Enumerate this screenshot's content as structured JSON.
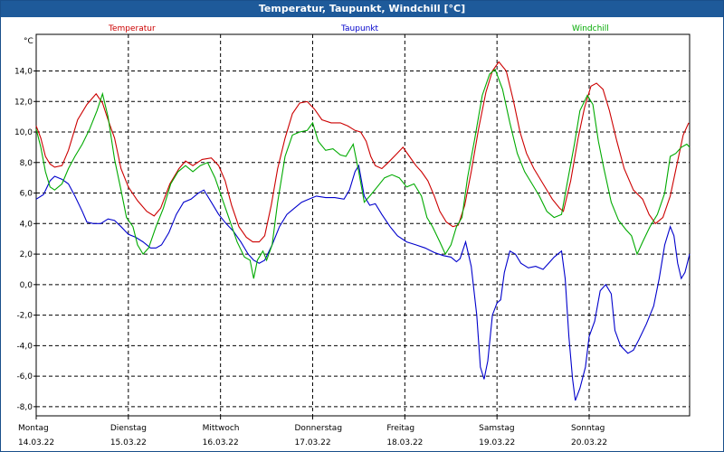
{
  "chart_data": {
    "type": "line",
    "title": "Temperatur, Taupunkt, Windchill [°C]",
    "ylabel": "°C",
    "ylim": [
      -8.6,
      16.4
    ],
    "xlim": [
      0,
      7.09
    ],
    "grid": true,
    "y_ticks": [
      "14,0",
      "12,0",
      "10,0",
      "8,0",
      "6,0",
      "4,0",
      "2,0",
      "0,0",
      "-2,0",
      "-4,0",
      "-6,0",
      "-8,0"
    ],
    "y_tick_values": [
      14,
      12,
      10,
      8,
      6,
      4,
      2,
      0,
      -2,
      -4,
      -6,
      -8
    ],
    "days": [
      {
        "day": "Montag",
        "date": "14.03.22"
      },
      {
        "day": "Dienstag",
        "date": "15.03.22"
      },
      {
        "day": "Mittwoch",
        "date": "16.03.22"
      },
      {
        "day": "Donnerstag",
        "date": "17.03.22"
      },
      {
        "day": "Freitag",
        "date": "18.03.22"
      },
      {
        "day": "Samstag",
        "date": "19.03.22"
      },
      {
        "day": "Sonntag",
        "date": "20.03.22"
      }
    ],
    "series": [
      {
        "name": "Temperatur",
        "color": "#cc0000",
        "points": [
          [
            0,
            10.4
          ],
          [
            0.05,
            9.6
          ],
          [
            0.1,
            8.4
          ],
          [
            0.15,
            7.9
          ],
          [
            0.2,
            7.7
          ],
          [
            0.28,
            7.8
          ],
          [
            0.35,
            8.8
          ],
          [
            0.45,
            10.8
          ],
          [
            0.55,
            11.8
          ],
          [
            0.65,
            12.5
          ],
          [
            0.72,
            11.9
          ],
          [
            0.78,
            10.8
          ],
          [
            0.85,
            9.6
          ],
          [
            0.92,
            7.6
          ],
          [
            1.0,
            6.4
          ],
          [
            1.1,
            5.5
          ],
          [
            1.2,
            4.8
          ],
          [
            1.28,
            4.5
          ],
          [
            1.35,
            5.0
          ],
          [
            1.45,
            6.6
          ],
          [
            1.55,
            7.6
          ],
          [
            1.62,
            8.1
          ],
          [
            1.7,
            7.8
          ],
          [
            1.8,
            8.2
          ],
          [
            1.9,
            8.3
          ],
          [
            1.98,
            7.8
          ],
          [
            2.05,
            6.8
          ],
          [
            2.12,
            5.2
          ],
          [
            2.2,
            3.8
          ],
          [
            2.28,
            3.1
          ],
          [
            2.35,
            2.8
          ],
          [
            2.42,
            2.8
          ],
          [
            2.48,
            3.2
          ],
          [
            2.55,
            5.2
          ],
          [
            2.62,
            7.6
          ],
          [
            2.7,
            9.6
          ],
          [
            2.78,
            11.2
          ],
          [
            2.86,
            11.9
          ],
          [
            2.94,
            12.0
          ],
          [
            3.02,
            11.5
          ],
          [
            3.1,
            10.8
          ],
          [
            3.2,
            10.6
          ],
          [
            3.3,
            10.6
          ],
          [
            3.38,
            10.4
          ],
          [
            3.46,
            10.1
          ],
          [
            3.52,
            10.0
          ],
          [
            3.58,
            9.4
          ],
          [
            3.63,
            8.4
          ],
          [
            3.68,
            7.8
          ],
          [
            3.75,
            7.6
          ],
          [
            3.82,
            8.0
          ],
          [
            3.9,
            8.5
          ],
          [
            3.98,
            9.0
          ],
          [
            4.05,
            8.4
          ],
          [
            4.12,
            7.8
          ],
          [
            4.18,
            7.4
          ],
          [
            4.25,
            6.8
          ],
          [
            4.32,
            5.8
          ],
          [
            4.38,
            4.8
          ],
          [
            4.45,
            4.1
          ],
          [
            4.52,
            3.8
          ],
          [
            4.58,
            3.9
          ],
          [
            4.65,
            5.2
          ],
          [
            4.72,
            7.4
          ],
          [
            4.8,
            10.2
          ],
          [
            4.88,
            12.6
          ],
          [
            4.95,
            14.0
          ],
          [
            5.02,
            14.6
          ],
          [
            5.1,
            14.0
          ],
          [
            5.18,
            12.0
          ],
          [
            5.25,
            10.0
          ],
          [
            5.32,
            8.6
          ],
          [
            5.4,
            7.6
          ],
          [
            5.5,
            6.6
          ],
          [
            5.6,
            5.6
          ],
          [
            5.68,
            5.0
          ],
          [
            5.72,
            4.8
          ],
          [
            5.8,
            6.8
          ],
          [
            5.88,
            9.6
          ],
          [
            5.95,
            11.6
          ],
          [
            6.02,
            13.0
          ],
          [
            6.08,
            13.2
          ],
          [
            6.15,
            12.8
          ],
          [
            6.22,
            11.4
          ],
          [
            6.3,
            9.4
          ],
          [
            6.38,
            7.6
          ],
          [
            6.48,
            6.2
          ],
          [
            6.58,
            5.6
          ],
          [
            6.65,
            4.6
          ],
          [
            6.72,
            4.0
          ],
          [
            6.8,
            4.4
          ],
          [
            6.88,
            5.8
          ],
          [
            6.95,
            7.8
          ],
          [
            7.02,
            9.8
          ],
          [
            7.08,
            10.6
          ]
        ]
      },
      {
        "name": "Taupunkt",
        "color": "#0000cc",
        "points": [
          [
            0,
            5.6
          ],
          [
            0.08,
            5.9
          ],
          [
            0.15,
            6.8
          ],
          [
            0.2,
            7.1
          ],
          [
            0.28,
            6.9
          ],
          [
            0.35,
            6.6
          ],
          [
            0.42,
            5.8
          ],
          [
            0.5,
            4.8
          ],
          [
            0.55,
            4.1
          ],
          [
            0.62,
            4.0
          ],
          [
            0.7,
            4.0
          ],
          [
            0.78,
            4.3
          ],
          [
            0.85,
            4.2
          ],
          [
            0.92,
            3.8
          ],
          [
            1.0,
            3.3
          ],
          [
            1.08,
            3.1
          ],
          [
            1.16,
            2.8
          ],
          [
            1.24,
            2.4
          ],
          [
            1.3,
            2.4
          ],
          [
            1.36,
            2.6
          ],
          [
            1.44,
            3.4
          ],
          [
            1.52,
            4.6
          ],
          [
            1.6,
            5.4
          ],
          [
            1.68,
            5.6
          ],
          [
            1.76,
            6.0
          ],
          [
            1.82,
            6.2
          ],
          [
            1.9,
            5.4
          ],
          [
            1.98,
            4.6
          ],
          [
            2.06,
            4.0
          ],
          [
            2.14,
            3.5
          ],
          [
            2.22,
            2.8
          ],
          [
            2.3,
            2.0
          ],
          [
            2.36,
            1.6
          ],
          [
            2.42,
            1.4
          ],
          [
            2.48,
            1.6
          ],
          [
            2.56,
            2.6
          ],
          [
            2.64,
            3.8
          ],
          [
            2.72,
            4.6
          ],
          [
            2.8,
            5.0
          ],
          [
            2.88,
            5.4
          ],
          [
            2.96,
            5.6
          ],
          [
            3.04,
            5.8
          ],
          [
            3.14,
            5.7
          ],
          [
            3.24,
            5.7
          ],
          [
            3.34,
            5.6
          ],
          [
            3.4,
            6.2
          ],
          [
            3.46,
            7.4
          ],
          [
            3.5,
            7.8
          ],
          [
            3.56,
            5.8
          ],
          [
            3.62,
            5.2
          ],
          [
            3.68,
            5.3
          ],
          [
            3.75,
            4.6
          ],
          [
            3.84,
            3.8
          ],
          [
            3.92,
            3.2
          ],
          [
            4.02,
            2.8
          ],
          [
            4.12,
            2.6
          ],
          [
            4.22,
            2.4
          ],
          [
            4.32,
            2.1
          ],
          [
            4.42,
            1.9
          ],
          [
            4.5,
            1.8
          ],
          [
            4.56,
            1.5
          ],
          [
            4.6,
            1.7
          ],
          [
            4.66,
            2.8
          ],
          [
            4.72,
            1.2
          ],
          [
            4.78,
            -2.0
          ],
          [
            4.82,
            -5.4
          ],
          [
            4.86,
            -6.2
          ],
          [
            4.9,
            -5.0
          ],
          [
            4.95,
            -2.0
          ],
          [
            5.0,
            -1.2
          ],
          [
            5.04,
            -1.0
          ],
          [
            5.08,
            0.8
          ],
          [
            5.14,
            2.2
          ],
          [
            5.2,
            2.0
          ],
          [
            5.26,
            1.4
          ],
          [
            5.34,
            1.1
          ],
          [
            5.42,
            1.2
          ],
          [
            5.5,
            1.0
          ],
          [
            5.56,
            1.4
          ],
          [
            5.62,
            1.8
          ],
          [
            5.7,
            2.2
          ],
          [
            5.74,
            0.4
          ],
          [
            5.78,
            -3.4
          ],
          [
            5.82,
            -6.2
          ],
          [
            5.85,
            -7.6
          ],
          [
            5.9,
            -6.8
          ],
          [
            5.96,
            -5.4
          ],
          [
            6.0,
            -3.4
          ],
          [
            6.06,
            -2.4
          ],
          [
            6.12,
            -0.4
          ],
          [
            6.18,
            0.0
          ],
          [
            6.24,
            -0.6
          ],
          [
            6.28,
            -3.0
          ],
          [
            6.34,
            -4.0
          ],
          [
            6.42,
            -4.5
          ],
          [
            6.48,
            -4.3
          ],
          [
            6.54,
            -3.6
          ],
          [
            6.62,
            -2.6
          ],
          [
            6.7,
            -1.4
          ],
          [
            6.76,
            0.4
          ],
          [
            6.82,
            2.6
          ],
          [
            6.88,
            3.8
          ],
          [
            6.92,
            3.2
          ],
          [
            6.96,
            1.4
          ],
          [
            7.0,
            0.4
          ],
          [
            7.04,
            0.8
          ],
          [
            7.09,
            2.0
          ]
        ]
      },
      {
        "name": "Windchill",
        "color": "#00aa00",
        "points": [
          [
            0,
            10.2
          ],
          [
            0.05,
            9.0
          ],
          [
            0.1,
            7.4
          ],
          [
            0.15,
            6.4
          ],
          [
            0.2,
            6.2
          ],
          [
            0.28,
            6.6
          ],
          [
            0.35,
            7.6
          ],
          [
            0.42,
            8.4
          ],
          [
            0.5,
            9.2
          ],
          [
            0.58,
            10.2
          ],
          [
            0.66,
            11.4
          ],
          [
            0.72,
            12.5
          ],
          [
            0.78,
            11.0
          ],
          [
            0.85,
            8.2
          ],
          [
            0.92,
            6.2
          ],
          [
            0.98,
            4.4
          ],
          [
            1.05,
            3.8
          ],
          [
            1.1,
            2.6
          ],
          [
            1.16,
            2.0
          ],
          [
            1.22,
            2.4
          ],
          [
            1.3,
            3.8
          ],
          [
            1.38,
            5.0
          ],
          [
            1.46,
            6.6
          ],
          [
            1.54,
            7.4
          ],
          [
            1.62,
            7.8
          ],
          [
            1.7,
            7.4
          ],
          [
            1.78,
            7.8
          ],
          [
            1.86,
            8.0
          ],
          [
            1.94,
            7.0
          ],
          [
            2.02,
            5.6
          ],
          [
            2.1,
            4.2
          ],
          [
            2.18,
            2.8
          ],
          [
            2.26,
            1.8
          ],
          [
            2.32,
            1.6
          ],
          [
            2.36,
            0.4
          ],
          [
            2.4,
            1.6
          ],
          [
            2.46,
            2.2
          ],
          [
            2.5,
            1.6
          ],
          [
            2.56,
            2.6
          ],
          [
            2.62,
            5.4
          ],
          [
            2.7,
            8.4
          ],
          [
            2.78,
            9.8
          ],
          [
            2.86,
            10.0
          ],
          [
            2.94,
            10.1
          ],
          [
            3.0,
            10.6
          ],
          [
            3.06,
            9.4
          ],
          [
            3.14,
            8.8
          ],
          [
            3.22,
            8.9
          ],
          [
            3.3,
            8.5
          ],
          [
            3.36,
            8.4
          ],
          [
            3.44,
            9.2
          ],
          [
            3.5,
            7.4
          ],
          [
            3.56,
            5.4
          ],
          [
            3.62,
            5.8
          ],
          [
            3.7,
            6.4
          ],
          [
            3.78,
            7.0
          ],
          [
            3.86,
            7.2
          ],
          [
            3.94,
            7.0
          ],
          [
            4.02,
            6.4
          ],
          [
            4.1,
            6.6
          ],
          [
            4.18,
            5.8
          ],
          [
            4.24,
            4.4
          ],
          [
            4.3,
            3.8
          ],
          [
            4.38,
            2.8
          ],
          [
            4.44,
            2.0
          ],
          [
            4.5,
            2.6
          ],
          [
            4.56,
            3.8
          ],
          [
            4.62,
            4.4
          ],
          [
            4.68,
            7.0
          ],
          [
            4.76,
            9.6
          ],
          [
            4.84,
            12.4
          ],
          [
            4.92,
            13.8
          ],
          [
            4.98,
            14.1
          ],
          [
            5.06,
            12.8
          ],
          [
            5.14,
            10.6
          ],
          [
            5.22,
            8.6
          ],
          [
            5.3,
            7.4
          ],
          [
            5.38,
            6.6
          ],
          [
            5.46,
            5.8
          ],
          [
            5.54,
            4.8
          ],
          [
            5.62,
            4.4
          ],
          [
            5.7,
            4.6
          ],
          [
            5.76,
            6.6
          ],
          [
            5.84,
            9.2
          ],
          [
            5.9,
            11.4
          ],
          [
            5.98,
            12.4
          ],
          [
            6.04,
            11.8
          ],
          [
            6.1,
            9.4
          ],
          [
            6.16,
            7.6
          ],
          [
            6.24,
            5.4
          ],
          [
            6.32,
            4.2
          ],
          [
            6.4,
            3.6
          ],
          [
            6.46,
            3.2
          ],
          [
            6.52,
            2.0
          ],
          [
            6.58,
            2.8
          ],
          [
            6.66,
            3.8
          ],
          [
            6.74,
            4.6
          ],
          [
            6.82,
            6.0
          ],
          [
            6.88,
            8.4
          ],
          [
            6.94,
            8.6
          ],
          [
            7.0,
            9.0
          ],
          [
            7.06,
            9.2
          ],
          [
            7.09,
            9.0
          ]
        ]
      }
    ]
  }
}
